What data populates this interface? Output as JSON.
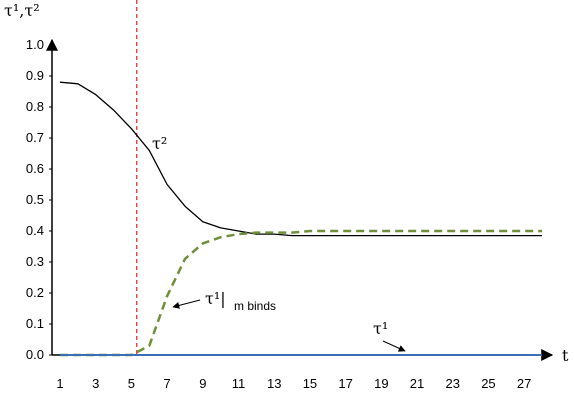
{
  "chart_data": {
    "type": "line",
    "y_axis_label": "τ¹,τ²",
    "x_axis_label": "t",
    "y_ticks": [
      "0.0",
      "0.1",
      "0.2",
      "0.3",
      "0.4",
      "0.5",
      "0.6",
      "0.7",
      "0.8",
      "0.9",
      "1.0"
    ],
    "x_ticks": [
      "1",
      "3",
      "5",
      "7",
      "9",
      "11",
      "13",
      "15",
      "17",
      "19",
      "21",
      "23",
      "25",
      "27"
    ],
    "ylim": [
      0,
      1.0
    ],
    "xlim": [
      1,
      28
    ],
    "vline_x": 5.3,
    "annotations": {
      "tau2": "τ²",
      "tau1_binds_main": "τ¹|",
      "tau1_binds_sub": "m binds",
      "tau1": "τ¹"
    },
    "series": [
      {
        "key": "tau2",
        "color": "#000000",
        "dash": "none",
        "x": [
          1,
          2,
          3,
          4,
          5,
          6,
          7,
          8,
          9,
          10,
          11,
          12,
          13,
          14,
          15,
          16,
          17,
          18,
          19,
          20,
          21,
          22,
          23,
          24,
          25,
          26,
          27,
          28
        ],
        "y": [
          0.88,
          0.875,
          0.84,
          0.79,
          0.73,
          0.66,
          0.55,
          0.48,
          0.43,
          0.41,
          0.4,
          0.39,
          0.39,
          0.385,
          0.385,
          0.385,
          0.385,
          0.385,
          0.385,
          0.385,
          0.385,
          0.385,
          0.385,
          0.385,
          0.385,
          0.385,
          0.385,
          0.385
        ]
      },
      {
        "key": "tau1_binds",
        "color": "#6f8f3a",
        "dash": "8,5",
        "x": [
          1,
          2,
          3,
          4,
          5,
          6,
          7,
          8,
          9,
          10,
          11,
          12,
          13,
          14,
          15,
          16,
          17,
          18,
          19,
          20,
          21,
          22,
          23,
          24,
          25,
          26,
          27,
          28
        ],
        "y": [
          0,
          0,
          0,
          0,
          0,
          0.03,
          0.19,
          0.31,
          0.36,
          0.38,
          0.39,
          0.395,
          0.395,
          0.395,
          0.4,
          0.4,
          0.4,
          0.4,
          0.4,
          0.4,
          0.4,
          0.4,
          0.4,
          0.4,
          0.4,
          0.4,
          0.4,
          0.4
        ]
      },
      {
        "key": "tau1",
        "color": "#3a6fb8",
        "dash": "none",
        "x": [
          1,
          28
        ],
        "y": [
          0,
          0
        ]
      }
    ]
  }
}
